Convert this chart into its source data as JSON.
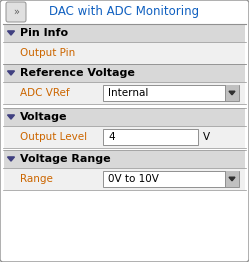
{
  "title": "DAC with ADC Monitoring",
  "title_color": "#1060c0",
  "bg_outer": "#e8e8e8",
  "bg_white": "#ffffff",
  "bg_section_header": "#d8d8d8",
  "bg_row": "#f0f0f0",
  "border_color": "#909090",
  "icon_border": "#909090",
  "icon_bg": "#e0e0e0",
  "icon_color": "#606060",
  "triangle_color": "#404080",
  "section_label_color": "#000000",
  "row_label_color": "#cc6600",
  "row_value_color": "#000000",
  "unit_color": "#000000",
  "dd_border": "#909090",
  "dd_btn_bg": "#c0c0c0",
  "dd_arrow_color": "#303030",
  "sections": [
    {
      "label": "Pin Info",
      "row_label": "Output Pin",
      "row_value": "",
      "type": "text",
      "unit": ""
    },
    {
      "label": "Reference Voltage",
      "row_label": "ADC VRef",
      "row_value": "Internal",
      "type": "dropdown",
      "unit": ""
    },
    {
      "label": "Voltage",
      "row_label": "Output Level",
      "row_value": "4",
      "type": "textbox",
      "unit": "V"
    },
    {
      "label": "Voltage Range",
      "row_label": "Range",
      "row_value": "0V to 10V",
      "type": "dropdown",
      "unit": ""
    }
  ],
  "figw": 2.49,
  "figh": 2.62,
  "dpi": 100
}
